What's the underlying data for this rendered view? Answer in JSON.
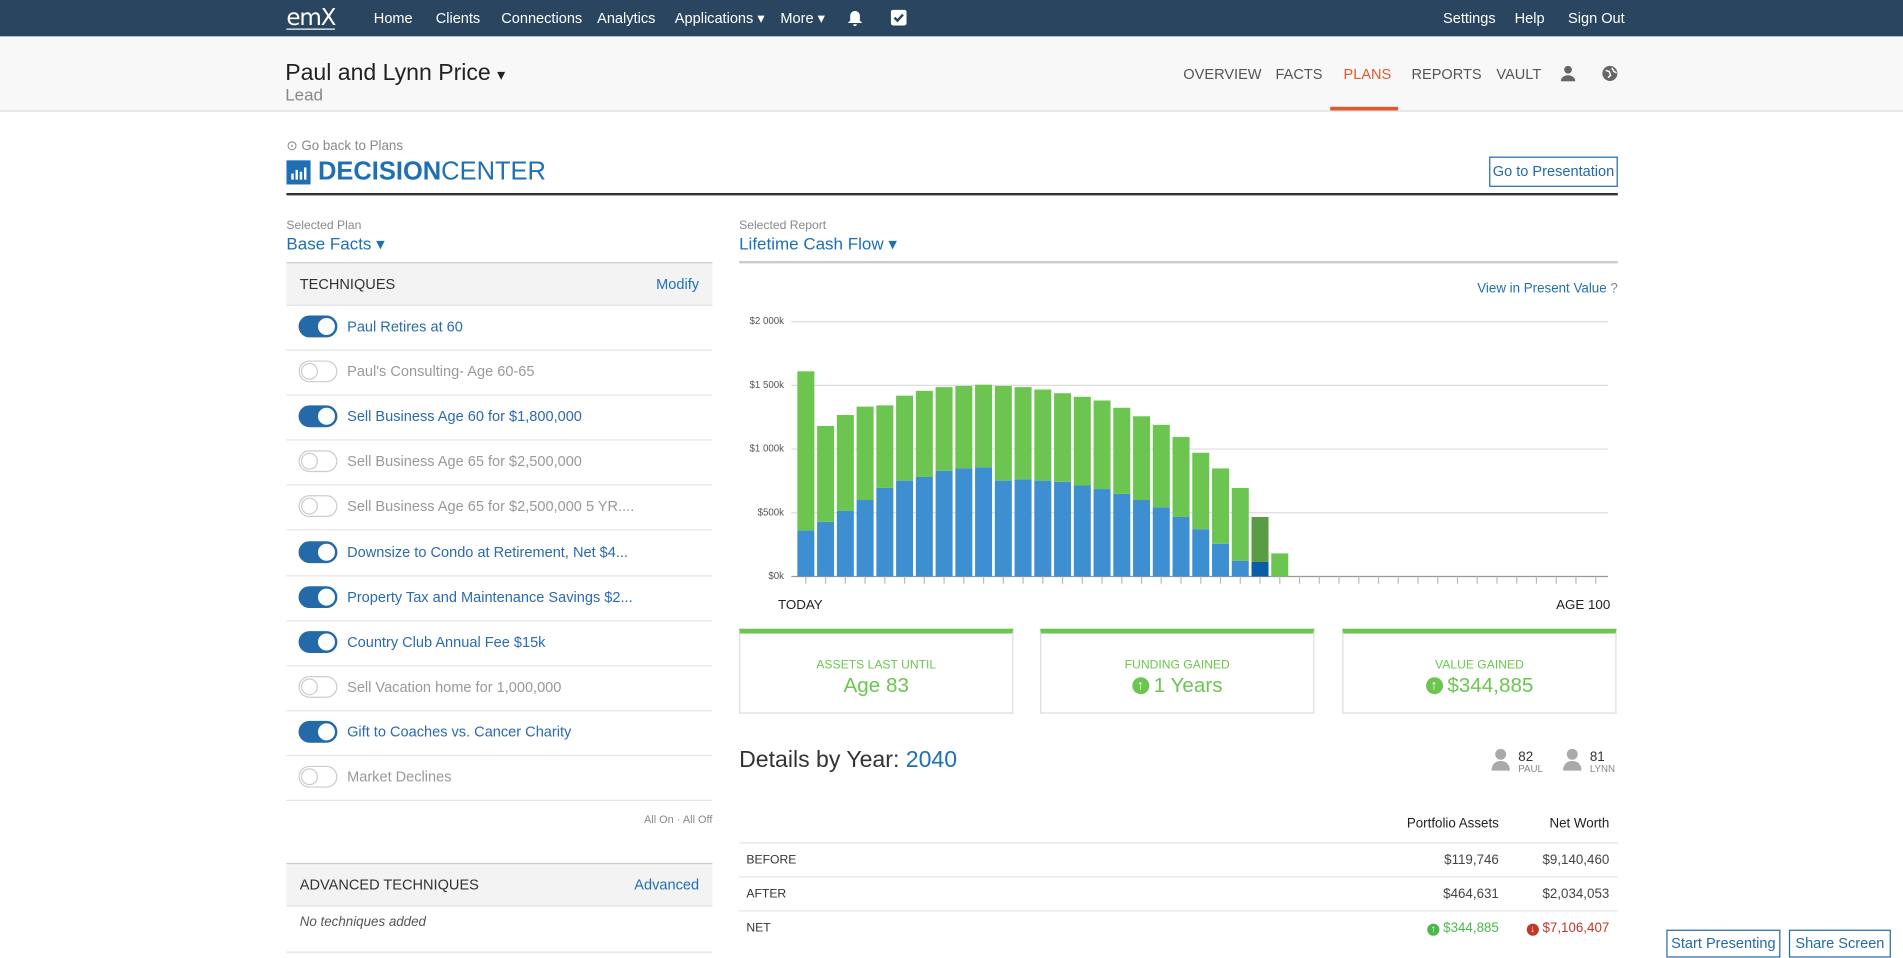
{
  "nav": {
    "logo": "emX",
    "items": [
      "Home",
      "Clients",
      "Connections",
      "Analytics",
      "Applications",
      "More"
    ],
    "right": [
      "Settings",
      "Help",
      "Sign Out"
    ]
  },
  "client": {
    "name": "Paul and Lynn Price",
    "status": "Lead",
    "tabs": [
      "OVERVIEW",
      "FACTS",
      "PLANS",
      "REPORTS",
      "VAULT"
    ]
  },
  "page": {
    "back": "Go back to Plans",
    "title_bold": "DECISION",
    "title_light": "CENTER",
    "button": "Go to Presentation"
  },
  "plan": {
    "label": "Selected Plan",
    "value": "Base Facts"
  },
  "techniques": {
    "title": "TECHNIQUES",
    "action": "Modify",
    "items": [
      {
        "label": "Paul Retires at 60",
        "on": true
      },
      {
        "label": "Paul's Consulting- Age 60-65",
        "on": false
      },
      {
        "label": "Sell Business Age 60 for $1,800,000",
        "on": true
      },
      {
        "label": "Sell Business Age 65 for $2,500,000",
        "on": false
      },
      {
        "label": "Sell Business Age 65 for $2,500,000 5 YR....",
        "on": false
      },
      {
        "label": "Downsize to Condo at Retirement, Net $4...",
        "on": true
      },
      {
        "label": "Property Tax and Maintenance Savings $2...",
        "on": true
      },
      {
        "label": "Country Club Annual Fee $15k",
        "on": true
      },
      {
        "label": "Sell Vacation home for 1,000,000",
        "on": false
      },
      {
        "label": "Gift to Coaches vs. Cancer Charity",
        "on": true
      },
      {
        "label": "Market Declines",
        "on": false
      }
    ],
    "all_on": "All On",
    "all_off": "All Off"
  },
  "advanced": {
    "title": "ADVANCED TECHNIQUES",
    "action": "Advanced",
    "empty": "No techniques added"
  },
  "report": {
    "label": "Selected Report",
    "value": "Lifetime Cash Flow",
    "present_value": "View in Present Value"
  },
  "chart_data": {
    "type": "bar",
    "stacked": true,
    "categories": [
      "TODAY",
      null,
      null,
      null,
      null,
      null,
      null,
      null,
      null,
      null,
      null,
      null,
      null,
      null,
      null,
      null,
      null,
      null,
      null,
      null,
      null,
      null,
      null,
      null,
      null,
      null,
      null,
      null,
      null,
      null,
      null,
      null,
      null,
      null,
      null,
      null,
      null,
      null,
      null,
      null,
      "AGE 100"
    ],
    "series": [
      {
        "color": "#3d8fd1",
        "values": [
          362,
          429,
          514,
          600,
          695,
          752,
          781,
          829,
          848,
          857,
          752,
          762,
          752,
          743,
          714,
          686,
          648,
          600,
          543,
          467,
          371,
          257,
          124,
          114,
          0,
          0,
          0,
          0,
          0,
          0,
          0,
          0,
          0,
          0,
          0,
          0,
          0,
          0,
          0,
          0,
          0
        ]
      },
      {
        "color": "#6cc551",
        "values": [
          1248,
          752,
          753,
          733,
          648,
          667,
          676,
          657,
          647,
          648,
          743,
          724,
          715,
          695,
          696,
          695,
          676,
          657,
          647,
          628,
          600,
          591,
          571,
          353,
          181,
          0,
          0,
          0,
          0,
          0,
          0,
          0,
          0,
          0,
          0,
          0,
          0,
          0,
          0,
          0,
          0
        ]
      }
    ],
    "selected_index": 23,
    "selected_colors": [
      "#0a5ea6",
      "#5a9b46"
    ],
    "ylim": [
      0,
      2000
    ],
    "yticks": [
      {
        "value": 0,
        "label": "$0k"
      },
      {
        "value": 500,
        "label": "$500k"
      },
      {
        "value": 1000,
        "label": "$1 000k"
      },
      {
        "value": 1500,
        "label": "$1 500k"
      },
      {
        "value": 2000,
        "label": "$2 000k"
      }
    ],
    "grid": true
  },
  "cards": [
    {
      "label": "ASSETS LAST UNTIL",
      "value": "Age 83"
    },
    {
      "label": "FUNDING GAINED",
      "value": "1 Years"
    },
    {
      "label": "VALUE GAINED",
      "value": "$344,885"
    }
  ],
  "details": {
    "title": "Details by Year:",
    "year": "2040",
    "persons": [
      {
        "age": "82",
        "name": "PAUL"
      },
      {
        "age": "81",
        "name": "LYNN"
      }
    ],
    "columns": [
      "Portfolio Assets",
      "Net Worth"
    ],
    "rows": [
      [
        "BEFORE",
        "$119,746",
        "$9,140,460"
      ],
      [
        "AFTER",
        "$464,631",
        "$2,034,053"
      ],
      [
        "NET",
        "$344,885",
        "$7,106,407"
      ]
    ]
  },
  "footer": {
    "start": "Start Presenting",
    "share": "Share Screen"
  }
}
